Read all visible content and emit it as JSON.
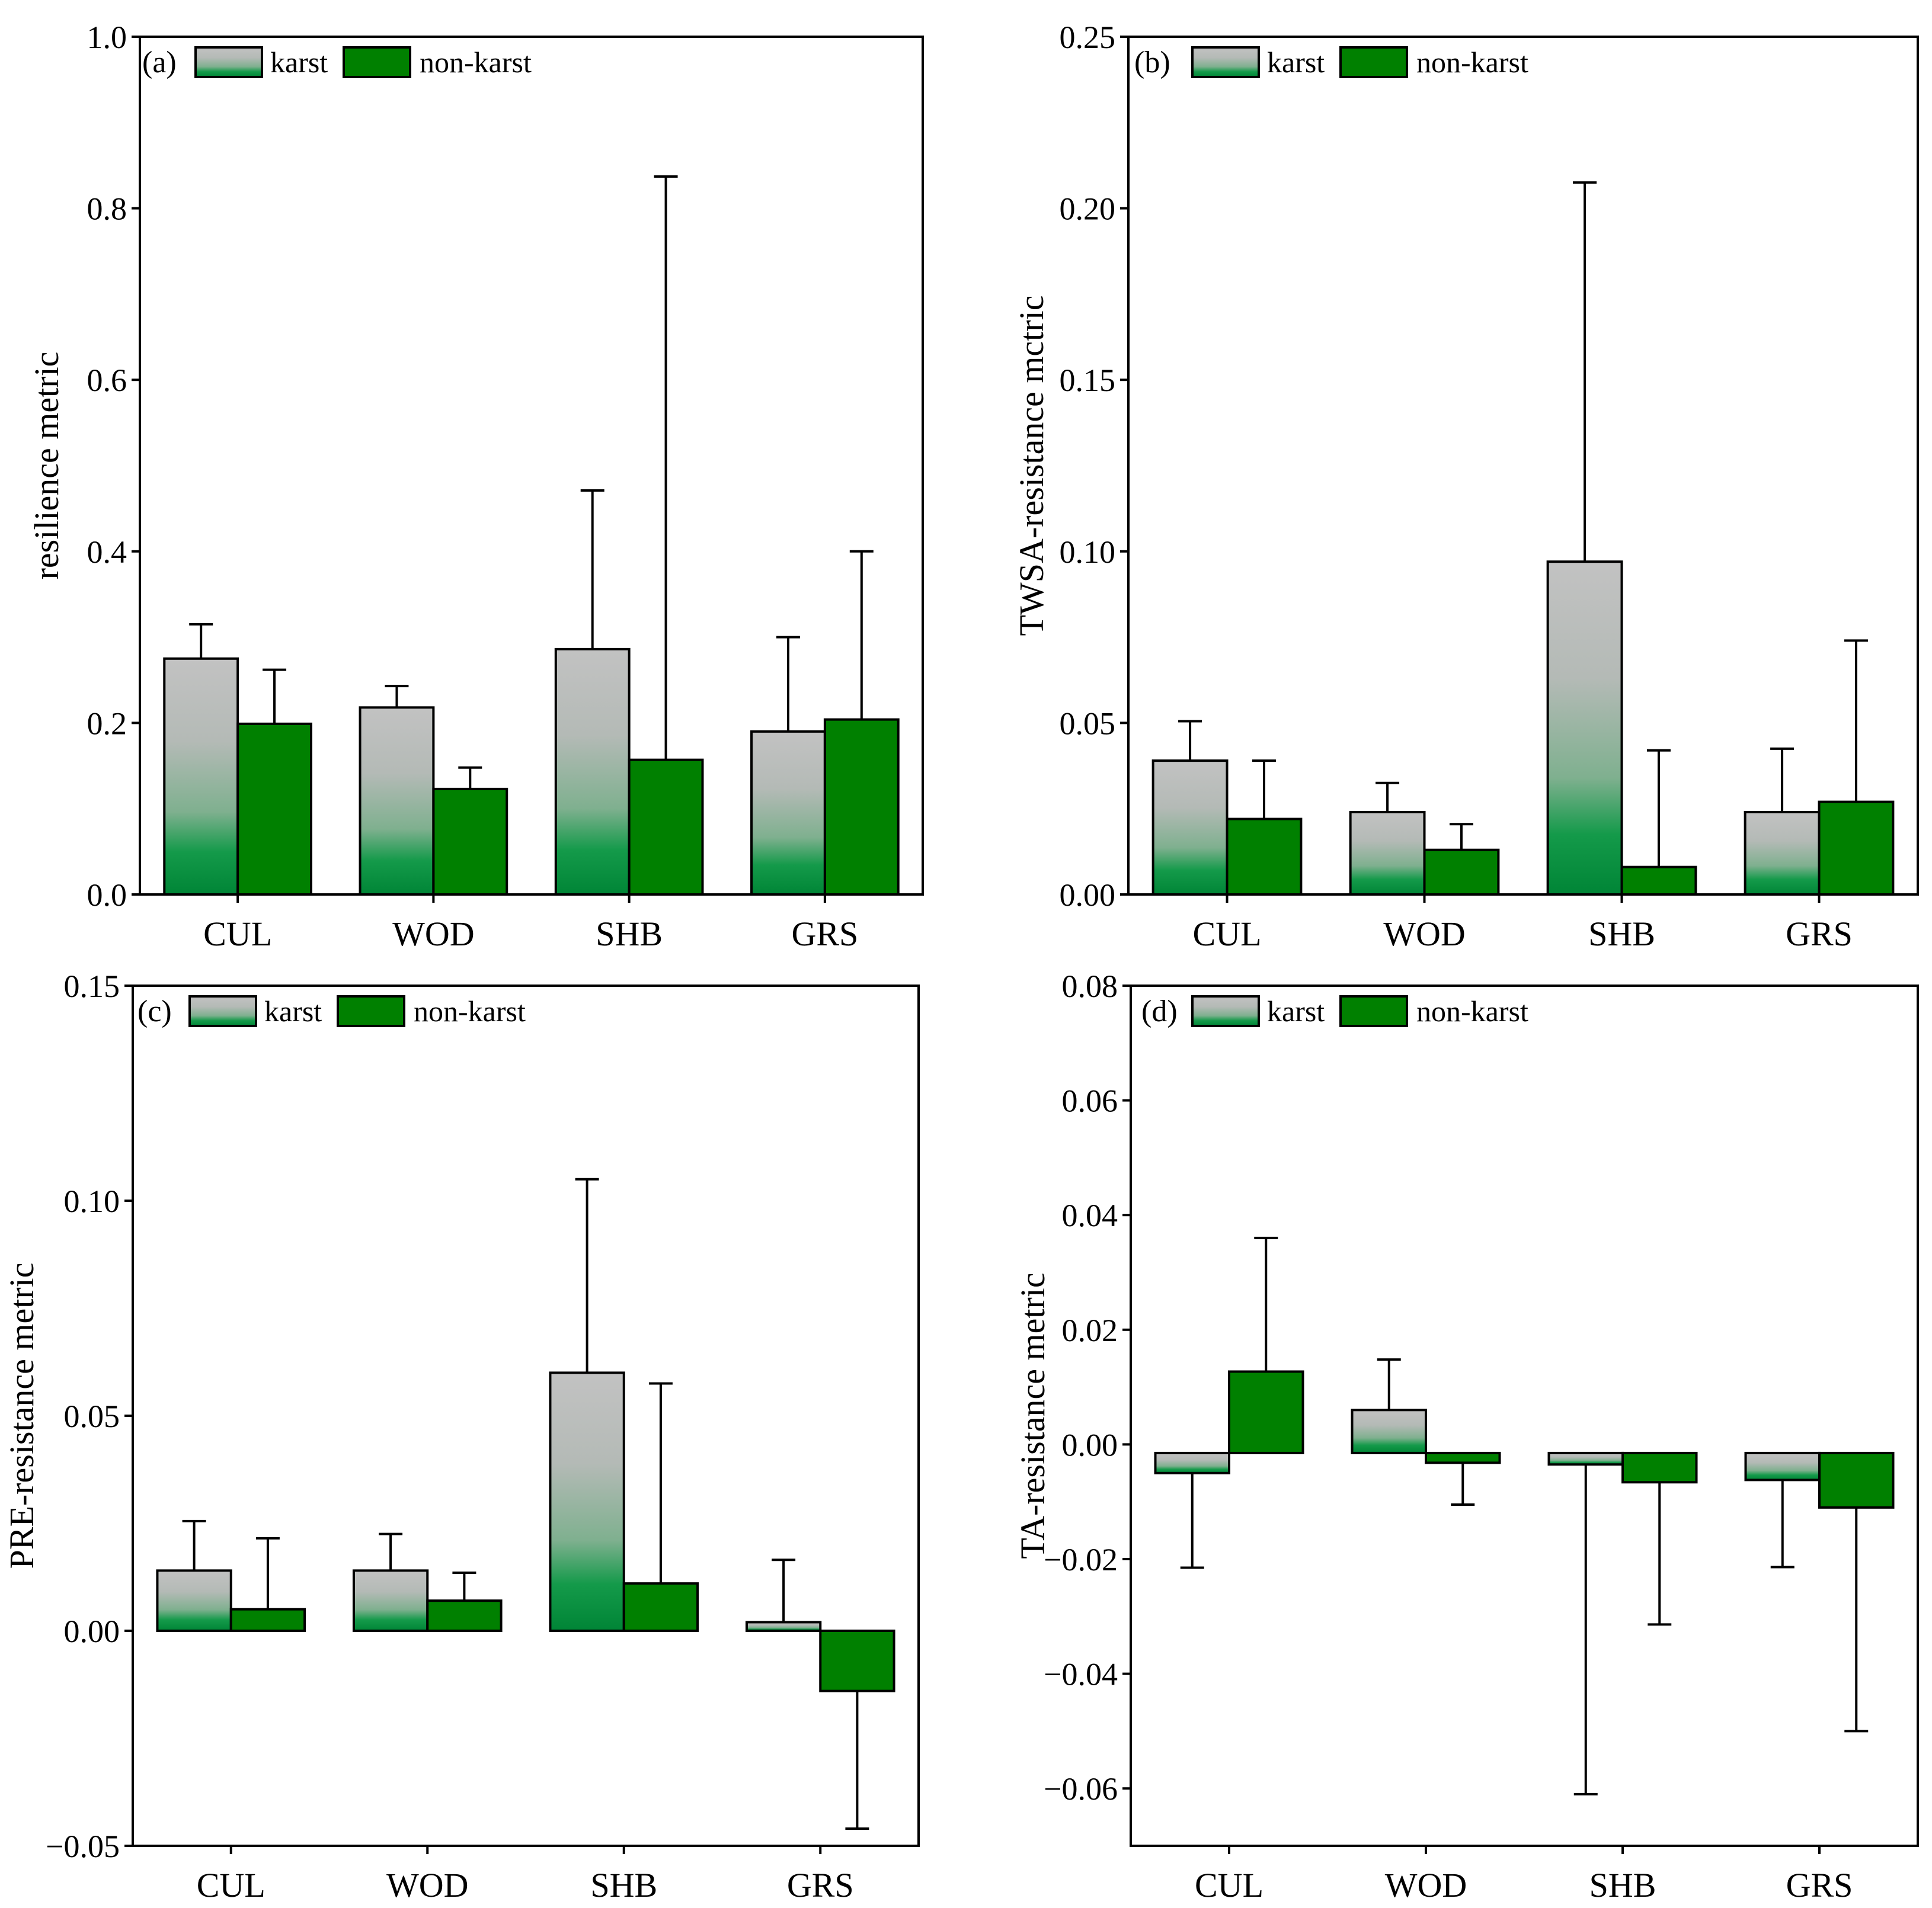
{
  "legend": {
    "karst": "karst",
    "nonkarst": "non-karst"
  },
  "colors": {
    "nonkarst": "#008000",
    "karst_top": "#c2c2c2",
    "karst_bottom": "#008536",
    "outline": "#000000"
  },
  "chart_data": [
    {
      "type": "bar",
      "panel": "(a)",
      "ylabel": "resilience metric",
      "categories": [
        "CUL",
        "WOD",
        "SHB",
        "GRS"
      ],
      "ylim": [
        0,
        1.0
      ],
      "yticks": [
        0.0,
        0.2,
        0.4,
        0.6,
        0.8,
        1.0
      ],
      "ytick_labels": [
        "0.0",
        "0.2",
        "0.4",
        "0.6",
        "0.8",
        "1.0"
      ],
      "series": [
        {
          "name": "karst",
          "values": [
            0.275,
            0.218,
            0.286,
            0.19
          ],
          "error": [
            0.04,
            0.025,
            0.185,
            0.11
          ]
        },
        {
          "name": "non-karst",
          "values": [
            0.199,
            0.123,
            0.157,
            0.204
          ],
          "error": [
            0.063,
            0.025,
            0.68,
            0.196
          ]
        }
      ]
    },
    {
      "type": "bar",
      "panel": "(b)",
      "ylabel": "TWSA-resistance mctric",
      "categories": [
        "CUL",
        "WOD",
        "SHB",
        "GRS"
      ],
      "ylim": [
        0,
        0.25
      ],
      "yticks": [
        0,
        0.05,
        0.1,
        0.15,
        0.2,
        0.25
      ],
      "ytick_labels": [
        "0.00",
        "0.05",
        "0.10",
        "0.15",
        "0.20",
        "0.25"
      ],
      "series": [
        {
          "name": "karst",
          "values": [
            0.039,
            0.024,
            0.097,
            0.024
          ],
          "error": [
            0.0115,
            0.0085,
            0.1105,
            0.0185
          ]
        },
        {
          "name": "non-karst",
          "values": [
            0.022,
            0.013,
            0.008,
            0.027
          ],
          "error": [
            0.017,
            0.0075,
            0.034,
            0.047
          ]
        }
      ]
    },
    {
      "type": "bar",
      "panel": "(c)",
      "ylabel": "PRE-resistance metric",
      "categories": [
        "CUL",
        "WOD",
        "SHB",
        "GRS"
      ],
      "ylim": [
        -0.05,
        0.15
      ],
      "yticks": [
        -0.05,
        0,
        0.05,
        0.1,
        0.15
      ],
      "ytick_labels": [
        "−0.05",
        "0.00",
        "0.05",
        "0.10",
        "0.15"
      ],
      "series": [
        {
          "name": "karst",
          "values": [
            0.014,
            0.014,
            0.06,
            0.002
          ],
          "error": [
            0.0115,
            0.0085,
            0.045,
            0.0145
          ]
        },
        {
          "name": "non-karst",
          "values": [
            0.005,
            0.007,
            0.011,
            -0.014
          ],
          "error": [
            0.0165,
            0.0065,
            0.0465,
            0.032
          ]
        }
      ]
    },
    {
      "type": "bar",
      "panel": "(d)",
      "ylabel": "TA-resistance metric",
      "categories": [
        "CUL",
        "WOD",
        "SHB",
        "GRS"
      ],
      "ylim": [
        -0.07,
        0.08
      ],
      "yticks": [
        -0.06,
        -0.04,
        -0.02,
        0,
        0.02,
        0.04,
        0.06,
        0.08
      ],
      "ytick_labels": [
        "−0.06",
        "−0.04",
        "−0.02",
        "0.00",
        "0.02",
        "0.04",
        "0.06",
        "0.08"
      ],
      "bar_base": -0.0015,
      "series": [
        {
          "name": "karst",
          "values": [
            -0.005,
            0.006,
            -0.0035,
            -0.0062
          ],
          "error": [
            0.0165,
            0.0088,
            0.0575,
            0.0152
          ]
        },
        {
          "name": "non-karst",
          "values": [
            0.0127,
            -0.0032,
            -0.0066,
            -0.011
          ],
          "error": [
            0.0233,
            0.0073,
            0.0248,
            0.039
          ]
        }
      ]
    }
  ]
}
